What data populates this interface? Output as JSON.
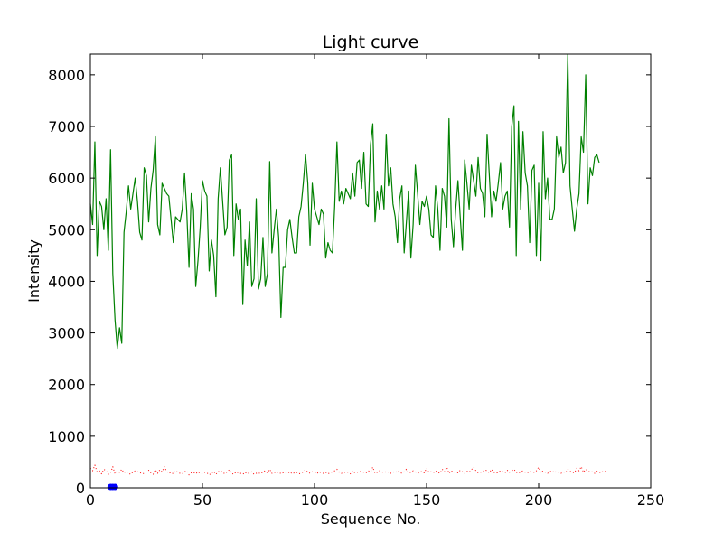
{
  "chart_data": {
    "type": "line",
    "title": "Light curve",
    "xlabel": "Sequence No.",
    "ylabel": "Intensity",
    "xlim": [
      0,
      250
    ],
    "ylim": [
      0,
      8400
    ],
    "xticks": [
      0,
      50,
      100,
      150,
      200,
      250
    ],
    "yticks": [
      0,
      1000,
      2000,
      3000,
      4000,
      5000,
      6000,
      7000,
      8000
    ],
    "grid": false,
    "legend": "none",
    "series": [
      {
        "style": "solid",
        "color": "#008000",
        "values": [
          5500,
          5100,
          6700,
          4500,
          5550,
          5450,
          5000,
          5600,
          4600,
          6550,
          4150,
          3250,
          2700,
          3100,
          2800,
          4950,
          5350,
          5850,
          5400,
          5700,
          6000,
          5550,
          4950,
          4800,
          6200,
          6050,
          5150,
          5800,
          6150,
          6800,
          5100,
          4900,
          5900,
          5800,
          5700,
          5650,
          5200,
          4750,
          5250,
          5200,
          5150,
          5400,
          6100,
          5350,
          4270,
          5700,
          5400,
          3900,
          4400,
          5050,
          5950,
          5750,
          5650,
          4200,
          4800,
          4500,
          3700,
          5600,
          6200,
          5550,
          4900,
          5050,
          6350,
          6450,
          4500,
          5500,
          5200,
          5400,
          3550,
          4800,
          4300,
          5150,
          3900,
          4050,
          5600,
          3850,
          4050,
          4850,
          3900,
          4150,
          6320,
          4550,
          5000,
          5400,
          4850,
          3300,
          4270,
          4270,
          5000,
          5200,
          4850,
          4550,
          4550,
          5250,
          5450,
          5900,
          6450,
          5900,
          4700,
          5900,
          5400,
          5250,
          5100,
          5400,
          5300,
          4450,
          4750,
          4600,
          4550,
          5450,
          6700,
          5550,
          5750,
          5500,
          5800,
          5700,
          5600,
          6100,
          5650,
          6300,
          6350,
          5800,
          6500,
          5500,
          5450,
          6650,
          7050,
          5150,
          5750,
          5400,
          5850,
          5400,
          6850,
          5850,
          6200,
          5500,
          5250,
          4750,
          5600,
          5850,
          4550,
          5150,
          5750,
          4450,
          5100,
          6250,
          5700,
          5100,
          5550,
          5450,
          5650,
          5400,
          4900,
          4850,
          5850,
          5400,
          4600,
          5800,
          5650,
          5050,
          7150,
          5200,
          4670,
          5400,
          5950,
          5250,
          4600,
          6350,
          5900,
          5400,
          6250,
          5950,
          5650,
          6400,
          5800,
          5700,
          5250,
          6850,
          6050,
          5250,
          5750,
          5550,
          5900,
          6300,
          5400,
          5650,
          5750,
          5050,
          7000,
          7400,
          4500,
          7100,
          5400,
          6900,
          6100,
          5850,
          4750,
          6150,
          6250,
          4500,
          5900,
          4400,
          6900,
          5600,
          6000,
          5200,
          5200,
          5400,
          6800,
          6400,
          6600,
          6100,
          6300,
          8400,
          5850,
          5400,
          4970,
          5400,
          5700,
          6800,
          6500,
          8000,
          5500,
          6200,
          6050,
          6400,
          6450,
          6300
        ]
      },
      {
        "style": "dotted",
        "color": "#ff0000",
        "values": [
          380,
          330,
          440,
          310,
          330,
          270,
          360,
          330,
          260,
          290,
          410,
          270,
          320,
          300,
          360,
          290,
          320,
          280,
          260,
          310,
          330,
          310,
          300,
          270,
          280,
          320,
          340,
          290,
          260,
          350,
          280,
          350,
          310,
          410,
          320,
          280,
          300,
          270,
          330,
          300,
          280,
          270,
          310,
          330,
          250,
          290,
          300,
          270,
          310,
          280,
          270,
          300,
          290,
          250,
          280,
          320,
          260,
          310,
          330,
          300,
          270,
          310,
          350,
          280,
          260,
          310,
          290,
          280,
          260,
          300,
          270,
          290,
          310,
          260,
          280,
          290,
          270,
          310,
          330,
          290,
          360,
          280,
          300,
          290,
          310,
          270,
          290,
          300,
          280,
          310,
          270,
          290,
          300,
          270,
          280,
          310,
          350,
          300,
          280,
          310,
          300,
          270,
          310,
          290,
          280,
          300,
          270,
          290,
          310,
          330,
          360,
          300,
          280,
          290,
          310,
          300,
          270,
          330,
          290,
          300,
          310,
          320,
          300,
          290,
          330,
          310,
          400,
          280,
          300,
          330,
          310,
          290,
          320,
          300,
          280,
          310,
          290,
          330,
          300,
          280,
          310,
          360,
          290,
          300,
          330,
          310,
          280,
          300,
          320,
          290,
          380,
          300,
          310,
          290,
          330,
          300,
          280,
          360,
          310,
          400,
          280,
          330,
          300,
          310,
          290,
          340,
          310,
          280,
          320,
          300,
          350,
          400,
          330,
          290,
          300,
          310,
          350,
          330,
          290,
          360,
          300,
          280,
          300,
          330,
          310,
          290,
          340,
          300,
          330,
          360,
          300,
          280,
          310,
          330,
          300,
          290,
          320,
          310,
          300,
          330,
          400,
          290,
          330,
          300,
          280,
          310,
          330,
          290,
          320,
          300,
          280,
          310,
          290,
          360,
          320,
          300,
          290,
          380,
          330,
          410,
          300,
          360,
          330,
          300,
          310,
          280,
          320,
          300,
          290,
          330,
          310
        ]
      },
      {
        "style": "dots",
        "color": "#0000ff",
        "x": [
          9,
          10,
          11
        ],
        "values": [
          0,
          0,
          0
        ]
      }
    ]
  }
}
